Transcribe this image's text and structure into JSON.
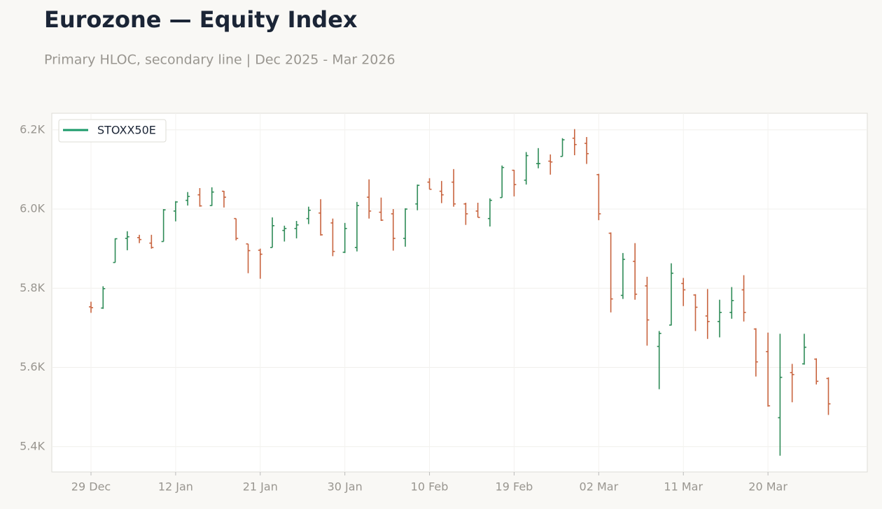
{
  "chart_data": {
    "type": "ohlc",
    "title": "Eurozone — Equity Index",
    "subtitle": "Primary HLOC, secondary line | Dec 2025 - Mar 2026",
    "categories": [
      "29 Dec",
      null,
      null,
      null,
      null,
      null,
      null,
      "12 Jan",
      null,
      null,
      null,
      null,
      null,
      null,
      "21 Jan",
      null,
      null,
      null,
      null,
      null,
      null,
      "30 Jan",
      null,
      null,
      null,
      null,
      null,
      null,
      "10 Feb",
      null,
      null,
      null,
      null,
      null,
      null,
      "19 Feb",
      null,
      null,
      null,
      null,
      null,
      null,
      "02 Mar",
      null,
      null,
      null,
      null,
      null,
      null,
      "11 Mar",
      null,
      null,
      null,
      null,
      null,
      null,
      "20 Mar",
      null,
      null,
      null,
      null,
      null
    ],
    "series": [
      {
        "name": "STOXX50E",
        "color": "#1a9a6a",
        "up_color": "#2e8b57",
        "down_color": "#c8643f",
        "open": [
          5753,
          5750,
          5865,
          5926,
          5928,
          5914,
          5918,
          5995,
          6022,
          6036,
          6009,
          6045,
          5976,
          5912,
          5896,
          5903,
          5946,
          5951,
          5976,
          5990,
          5965,
          5891,
          5903,
          6030,
          5992,
          5988,
          5926,
          6013,
          6068,
          6045,
          6068,
          6013,
          5995,
          5976,
          6029,
          6098,
          6073,
          6115,
          6121,
          6133,
          6179,
          6166,
          6087,
          5939,
          5782,
          5868,
          5806,
          5653,
          5707,
          5812,
          5783,
          5730,
          5716,
          5739,
          5796,
          5697,
          5640,
          5473,
          5587,
          5609,
          5621,
          5572
        ],
        "high": [
          5766,
          5805,
          5926,
          5944,
          5935,
          5935,
          6000,
          6020,
          6043,
          6053,
          6055,
          6046,
          5976,
          5912,
          5900,
          5979,
          5958,
          5970,
          6006,
          6025,
          5976,
          5965,
          6018,
          6075,
          6029,
          6000,
          6002,
          6062,
          6078,
          6071,
          6101,
          6016,
          6016,
          6027,
          6110,
          6099,
          6144,
          6154,
          6138,
          6179,
          6202,
          6182,
          6089,
          5941,
          5889,
          5914,
          5829,
          5692,
          5863,
          5826,
          5785,
          5798,
          5771,
          5803,
          5833,
          5699,
          5688,
          5685,
          5609,
          5685,
          5623,
          5575
        ],
        "low": [
          5738,
          5748,
          5865,
          5896,
          5914,
          5900,
          5918,
          5969,
          6009,
          6006,
          6008,
          6004,
          5921,
          5838,
          5824,
          5903,
          5918,
          5926,
          5962,
          5933,
          5881,
          5889,
          5893,
          5976,
          5970,
          5895,
          5905,
          5997,
          6050,
          6015,
          6006,
          5960,
          5979,
          5956,
          6029,
          6032,
          6062,
          6103,
          6087,
          6133,
          6136,
          6114,
          5972,
          5739,
          5773,
          5771,
          5655,
          5545,
          5706,
          5755,
          5692,
          5672,
          5676,
          5723,
          5716,
          5577,
          5501,
          5377,
          5512,
          5607,
          5557,
          5480
        ],
        "close": [
          5751,
          5799,
          5925,
          5930,
          5923,
          5903,
          5998,
          6018,
          6032,
          6008,
          6043,
          6030,
          5926,
          5895,
          5886,
          5958,
          5951,
          5960,
          5997,
          5935,
          5893,
          5951,
          6009,
          5995,
          5972,
          5926,
          6000,
          6060,
          6050,
          6036,
          6013,
          5988,
          5979,
          6022,
          6105,
          6062,
          6135,
          6115,
          6119,
          6175,
          6163,
          6140,
          5988,
          5773,
          5873,
          5785,
          5720,
          5686,
          5838,
          5796,
          5752,
          5716,
          5739,
          5769,
          5739,
          5614,
          5503,
          5575,
          5582,
          5651,
          5565,
          5508
        ]
      }
    ],
    "ylim": [
      5336,
      6242
    ],
    "yticks": [
      {
        "value": 5400,
        "label": "5.4K"
      },
      {
        "value": 5600,
        "label": "5.6K"
      },
      {
        "value": 5800,
        "label": "5.8K"
      },
      {
        "value": 6000,
        "label": "6.0K"
      },
      {
        "value": 6200,
        "label": "6.2K"
      }
    ],
    "grid": true,
    "legend": "upper left"
  }
}
